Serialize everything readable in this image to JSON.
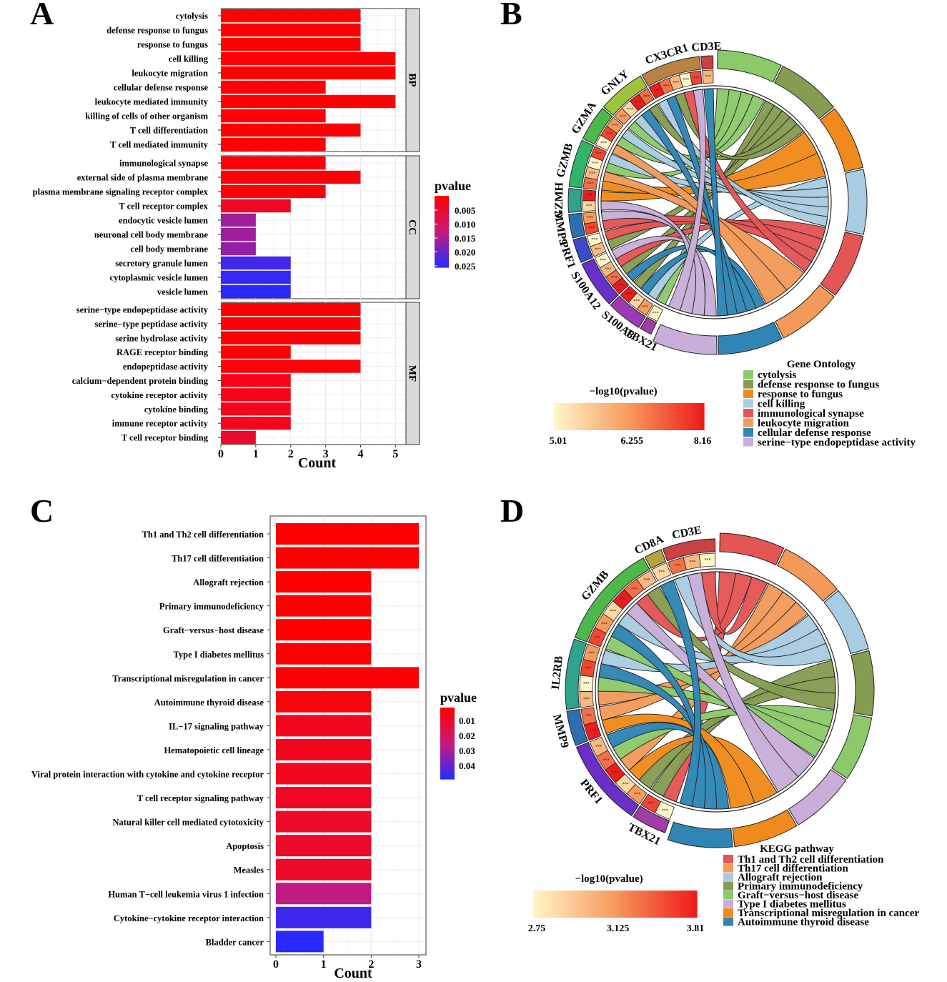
{
  "chart_data": [
    {
      "panel": "A",
      "type": "bar",
      "orientation": "horizontal",
      "xlabel": "Count",
      "xlim": [
        0,
        5.3
      ],
      "xticks": [
        0,
        1,
        2,
        3,
        4,
        5
      ],
      "legend": {
        "title": "pvalue",
        "ticks": [
          "0.005",
          "0.010",
          "0.015",
          "0.020",
          "0.025"
        ],
        "range": [
          0.0,
          0.027
        ]
      },
      "facets": [
        {
          "name": "BP",
          "rows": [
            {
              "term": "cytolysis",
              "count": 4,
              "pvalue": 0.0005
            },
            {
              "term": "defense response to fungus",
              "count": 4,
              "pvalue": 0.0005
            },
            {
              "term": "response to fungus",
              "count": 4,
              "pvalue": 0.0005
            },
            {
              "term": "cell killing",
              "count": 5,
              "pvalue": 0.0005
            },
            {
              "term": "leukocyte migration",
              "count": 5,
              "pvalue": 0.0005
            },
            {
              "term": "cellular defense response",
              "count": 3,
              "pvalue": 0.0005
            },
            {
              "term": "leukocyte mediated immunity",
              "count": 5,
              "pvalue": 0.0005
            },
            {
              "term": "killing of cells of other organism",
              "count": 3,
              "pvalue": 0.0006
            },
            {
              "term": "T cell differentiation",
              "count": 4,
              "pvalue": 0.0006
            },
            {
              "term": "T cell mediated immunity",
              "count": 3,
              "pvalue": 0.0007
            }
          ]
        },
        {
          "name": "CC",
          "rows": [
            {
              "term": "immunological synapse",
              "count": 3,
              "pvalue": 0.0008
            },
            {
              "term": "external side of plasma membrane",
              "count": 4,
              "pvalue": 0.0009
            },
            {
              "term": "plasma membrane signaling receptor complex",
              "count": 3,
              "pvalue": 0.001
            },
            {
              "term": "T cell receptor complex",
              "count": 2,
              "pvalue": 0.004
            },
            {
              "term": "endocytic vesicle lumen",
              "count": 1,
              "pvalue": 0.017
            },
            {
              "term": "neuronal cell body membrane",
              "count": 1,
              "pvalue": 0.017
            },
            {
              "term": "cell body membrane",
              "count": 1,
              "pvalue": 0.018
            },
            {
              "term": "secretory granule lumen",
              "count": 2,
              "pvalue": 0.025
            },
            {
              "term": "cytoplasmic vesicle lumen",
              "count": 2,
              "pvalue": 0.026
            },
            {
              "term": "vesicle lumen",
              "count": 2,
              "pvalue": 0.027
            }
          ]
        },
        {
          "name": "MF",
          "rows": [
            {
              "term": "serine−type endopeptidase activity",
              "count": 4,
              "pvalue": 0.0005
            },
            {
              "term": "serine−type peptidase activity",
              "count": 4,
              "pvalue": 0.0005
            },
            {
              "term": "serine hydrolase activity",
              "count": 4,
              "pvalue": 0.0005
            },
            {
              "term": "RAGE receptor binding",
              "count": 2,
              "pvalue": 0.0008
            },
            {
              "term": "endopeptidase activity",
              "count": 4,
              "pvalue": 0.001
            },
            {
              "term": "calcium−dependent protein binding",
              "count": 2,
              "pvalue": 0.0025
            },
            {
              "term": "cytokine receptor activity",
              "count": 2,
              "pvalue": 0.0028
            },
            {
              "term": "cytokine binding",
              "count": 2,
              "pvalue": 0.003
            },
            {
              "term": "immune receptor activity",
              "count": 2,
              "pvalue": 0.0032
            },
            {
              "term": "T cell receptor binding",
              "count": 1,
              "pvalue": 0.005
            }
          ]
        }
      ]
    },
    {
      "panel": "B",
      "type": "chord",
      "genes": [
        {
          "name": "TBX21",
          "color": "#a13ca8",
          "weight": 1
        },
        {
          "name": "S100A8",
          "color": "#9b3ab4",
          "weight": 3
        },
        {
          "name": "S100A12",
          "color": "#6a2fc8",
          "weight": 4
        },
        {
          "name": "PRF1",
          "color": "#3b4cc6",
          "weight": 2
        },
        {
          "name": "MMP9",
          "color": "#2e6eb0",
          "weight": 2
        },
        {
          "name": "GZMH",
          "color": "#2fa38e",
          "weight": 2
        },
        {
          "name": "GZMB",
          "color": "#33b36a",
          "weight": 4
        },
        {
          "name": "GZMA",
          "color": "#4eb84c",
          "weight": 3
        },
        {
          "name": "GNLY",
          "color": "#9ec43f",
          "weight": 4
        },
        {
          "name": "CX3CR1",
          "color": "#b98245",
          "weight": 5
        },
        {
          "name": "CD3E",
          "color": "#c94245",
          "weight": 1
        }
      ],
      "terms_title": "Gene Ontology",
      "terms": [
        {
          "name": "cytolysis",
          "color": "#8cc96b"
        },
        {
          "name": "defense response to fungus",
          "color": "#869c52"
        },
        {
          "name": "response to fungus",
          "color": "#f08a1d"
        },
        {
          "name": "cell killing",
          "color": "#a8cce2"
        },
        {
          "name": "immunological synapse",
          "color": "#e45555"
        },
        {
          "name": "leukocyte migration",
          "color": "#f39a5a"
        },
        {
          "name": "cellular defense response",
          "color": "#2f86b5"
        },
        {
          "name": "serine−type endopeptidase activity",
          "color": "#c8aed8"
        }
      ],
      "colorbar": {
        "title": "−log10(pvalue)",
        "ticks": [
          "5.01",
          "6.255",
          "8.16"
        ],
        "min": 5.01,
        "max": 8.16
      }
    },
    {
      "panel": "C",
      "type": "bar",
      "orientation": "horizontal",
      "xlabel": "Count",
      "xlim": [
        0,
        3.05
      ],
      "xticks": [
        0,
        1,
        2,
        3
      ],
      "legend": {
        "title": "pvalue",
        "ticks": [
          "0.01",
          "0.02",
          "0.03",
          "0.04"
        ],
        "range": [
          0.0016,
          0.046
        ]
      },
      "rows": [
        {
          "term": "Th1 and Th2 cell differentiation",
          "count": 3,
          "pvalue": 0.0016
        },
        {
          "term": "Th17 cell differentiation",
          "count": 3,
          "pvalue": 0.0017
        },
        {
          "term": "Allograft rejection",
          "count": 2,
          "pvalue": 0.0018
        },
        {
          "term": "Primary immunodeficiency",
          "count": 2,
          "pvalue": 0.0018
        },
        {
          "term": "Graft−versus−host disease",
          "count": 2,
          "pvalue": 0.0019
        },
        {
          "term": "Type I diabetes mellitus",
          "count": 2,
          "pvalue": 0.002
        },
        {
          "term": "Transcriptional misregulation in cancer",
          "count": 3,
          "pvalue": 0.003
        },
        {
          "term": "Autoimmune thyroid disease",
          "count": 2,
          "pvalue": 0.004
        },
        {
          "term": "IL−17 signaling pathway",
          "count": 2,
          "pvalue": 0.007
        },
        {
          "term": "Hematopoietic cell lineage",
          "count": 2,
          "pvalue": 0.007
        },
        {
          "term": "Viral protein interaction with cytokine and cytokine receptor",
          "count": 2,
          "pvalue": 0.007
        },
        {
          "term": "T cell receptor signaling pathway",
          "count": 2,
          "pvalue": 0.008
        },
        {
          "term": "Natural killer cell mediated cytotoxicity",
          "count": 2,
          "pvalue": 0.009
        },
        {
          "term": "Apoptosis",
          "count": 2,
          "pvalue": 0.009
        },
        {
          "term": "Measles",
          "count": 2,
          "pvalue": 0.009
        },
        {
          "term": "Human T−cell leukemia virus 1 infection",
          "count": 2,
          "pvalue": 0.025
        },
        {
          "term": "Cytokine−cytokine receptor interaction",
          "count": 2,
          "pvalue": 0.043
        },
        {
          "term": "Bladder cancer",
          "count": 1,
          "pvalue": 0.046
        }
      ]
    },
    {
      "panel": "D",
      "type": "chord",
      "genes": [
        {
          "name": "TBX21",
          "color": "#a13ca8",
          "weight": 2
        },
        {
          "name": "PRF1",
          "color": "#6a2fc8",
          "weight": 5
        },
        {
          "name": "MMP9",
          "color": "#2e6eb0",
          "weight": 2
        },
        {
          "name": "IL2RB",
          "color": "#2fa38e",
          "weight": 4
        },
        {
          "name": "GZMB",
          "color": "#4eb84c",
          "weight": 6
        },
        {
          "name": "CD8A",
          "color": "#b5a43a",
          "weight": 1
        },
        {
          "name": "CD3E",
          "color": "#c94245",
          "weight": 3
        }
      ],
      "terms_title": "KEGG pathway",
      "terms": [
        {
          "name": "Th1 and Th2 cell differentiation",
          "color": "#e45555"
        },
        {
          "name": "Th17 cell differentiation",
          "color": "#f39a5a"
        },
        {
          "name": "Allograft rejection",
          "color": "#a8cce2"
        },
        {
          "name": "Primary immunodeficiency",
          "color": "#869c52"
        },
        {
          "name": "Graft−versus−host disease",
          "color": "#8cc96b"
        },
        {
          "name": "Type I diabetes mellitus",
          "color": "#c8aed8"
        },
        {
          "name": "Transcriptional misregulation in cancer",
          "color": "#f08a1d"
        },
        {
          "name": "Autoimmune thyroid disease",
          "color": "#2f86b5"
        }
      ],
      "colorbar": {
        "title": "−log10(pvalue)",
        "ticks": [
          "2.75",
          "3.125",
          "3.81"
        ],
        "min": 2.75,
        "max": 3.81
      }
    }
  ],
  "panel_labels": [
    "A",
    "B",
    "C",
    "D"
  ]
}
